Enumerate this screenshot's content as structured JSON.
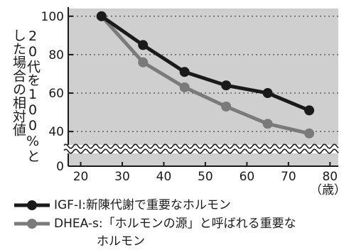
{
  "chart_data": {
    "type": "line",
    "ylabel": "20代を100%とした場合の相対値",
    "x_unit": "（歳）",
    "xlim": [
      17,
      82
    ],
    "ylim": [
      0,
      104
    ],
    "y_break": [
      4,
      36
    ],
    "x_ticks": [
      20,
      30,
      40,
      50,
      60,
      70,
      80
    ],
    "y_ticks": [
      0,
      40,
      60,
      80,
      100
    ],
    "grid": "horizontal-dotted",
    "colors": {
      "plot_bg": "#cfcfcf",
      "grid": "#555555",
      "axis": "#1a1a1a"
    },
    "series": [
      {
        "name": "IGF-I:新陳代謝で重要なホルモン",
        "color": "#1a1a1a",
        "marker": "circle",
        "x": [
          25,
          35,
          45,
          55,
          65,
          75
        ],
        "y": [
          100,
          85,
          71,
          64,
          60,
          51
        ]
      },
      {
        "name": "DHEA-s:「ホルモンの源」と呼ばれる重要なホルモン",
        "color": "#7a7a7a",
        "marker": "circle",
        "x": [
          25,
          35,
          45,
          55,
          65,
          75
        ],
        "y": [
          100,
          76,
          63,
          53,
          44,
          39
        ]
      }
    ],
    "legend_position": "bottom"
  },
  "legend": {
    "line1": "IGF-I:新陳代謝で重要なホルモン",
    "line2a": "DHEA-s:「ホルモンの源」と呼ばれる重要な",
    "line2b": "ホルモン"
  }
}
